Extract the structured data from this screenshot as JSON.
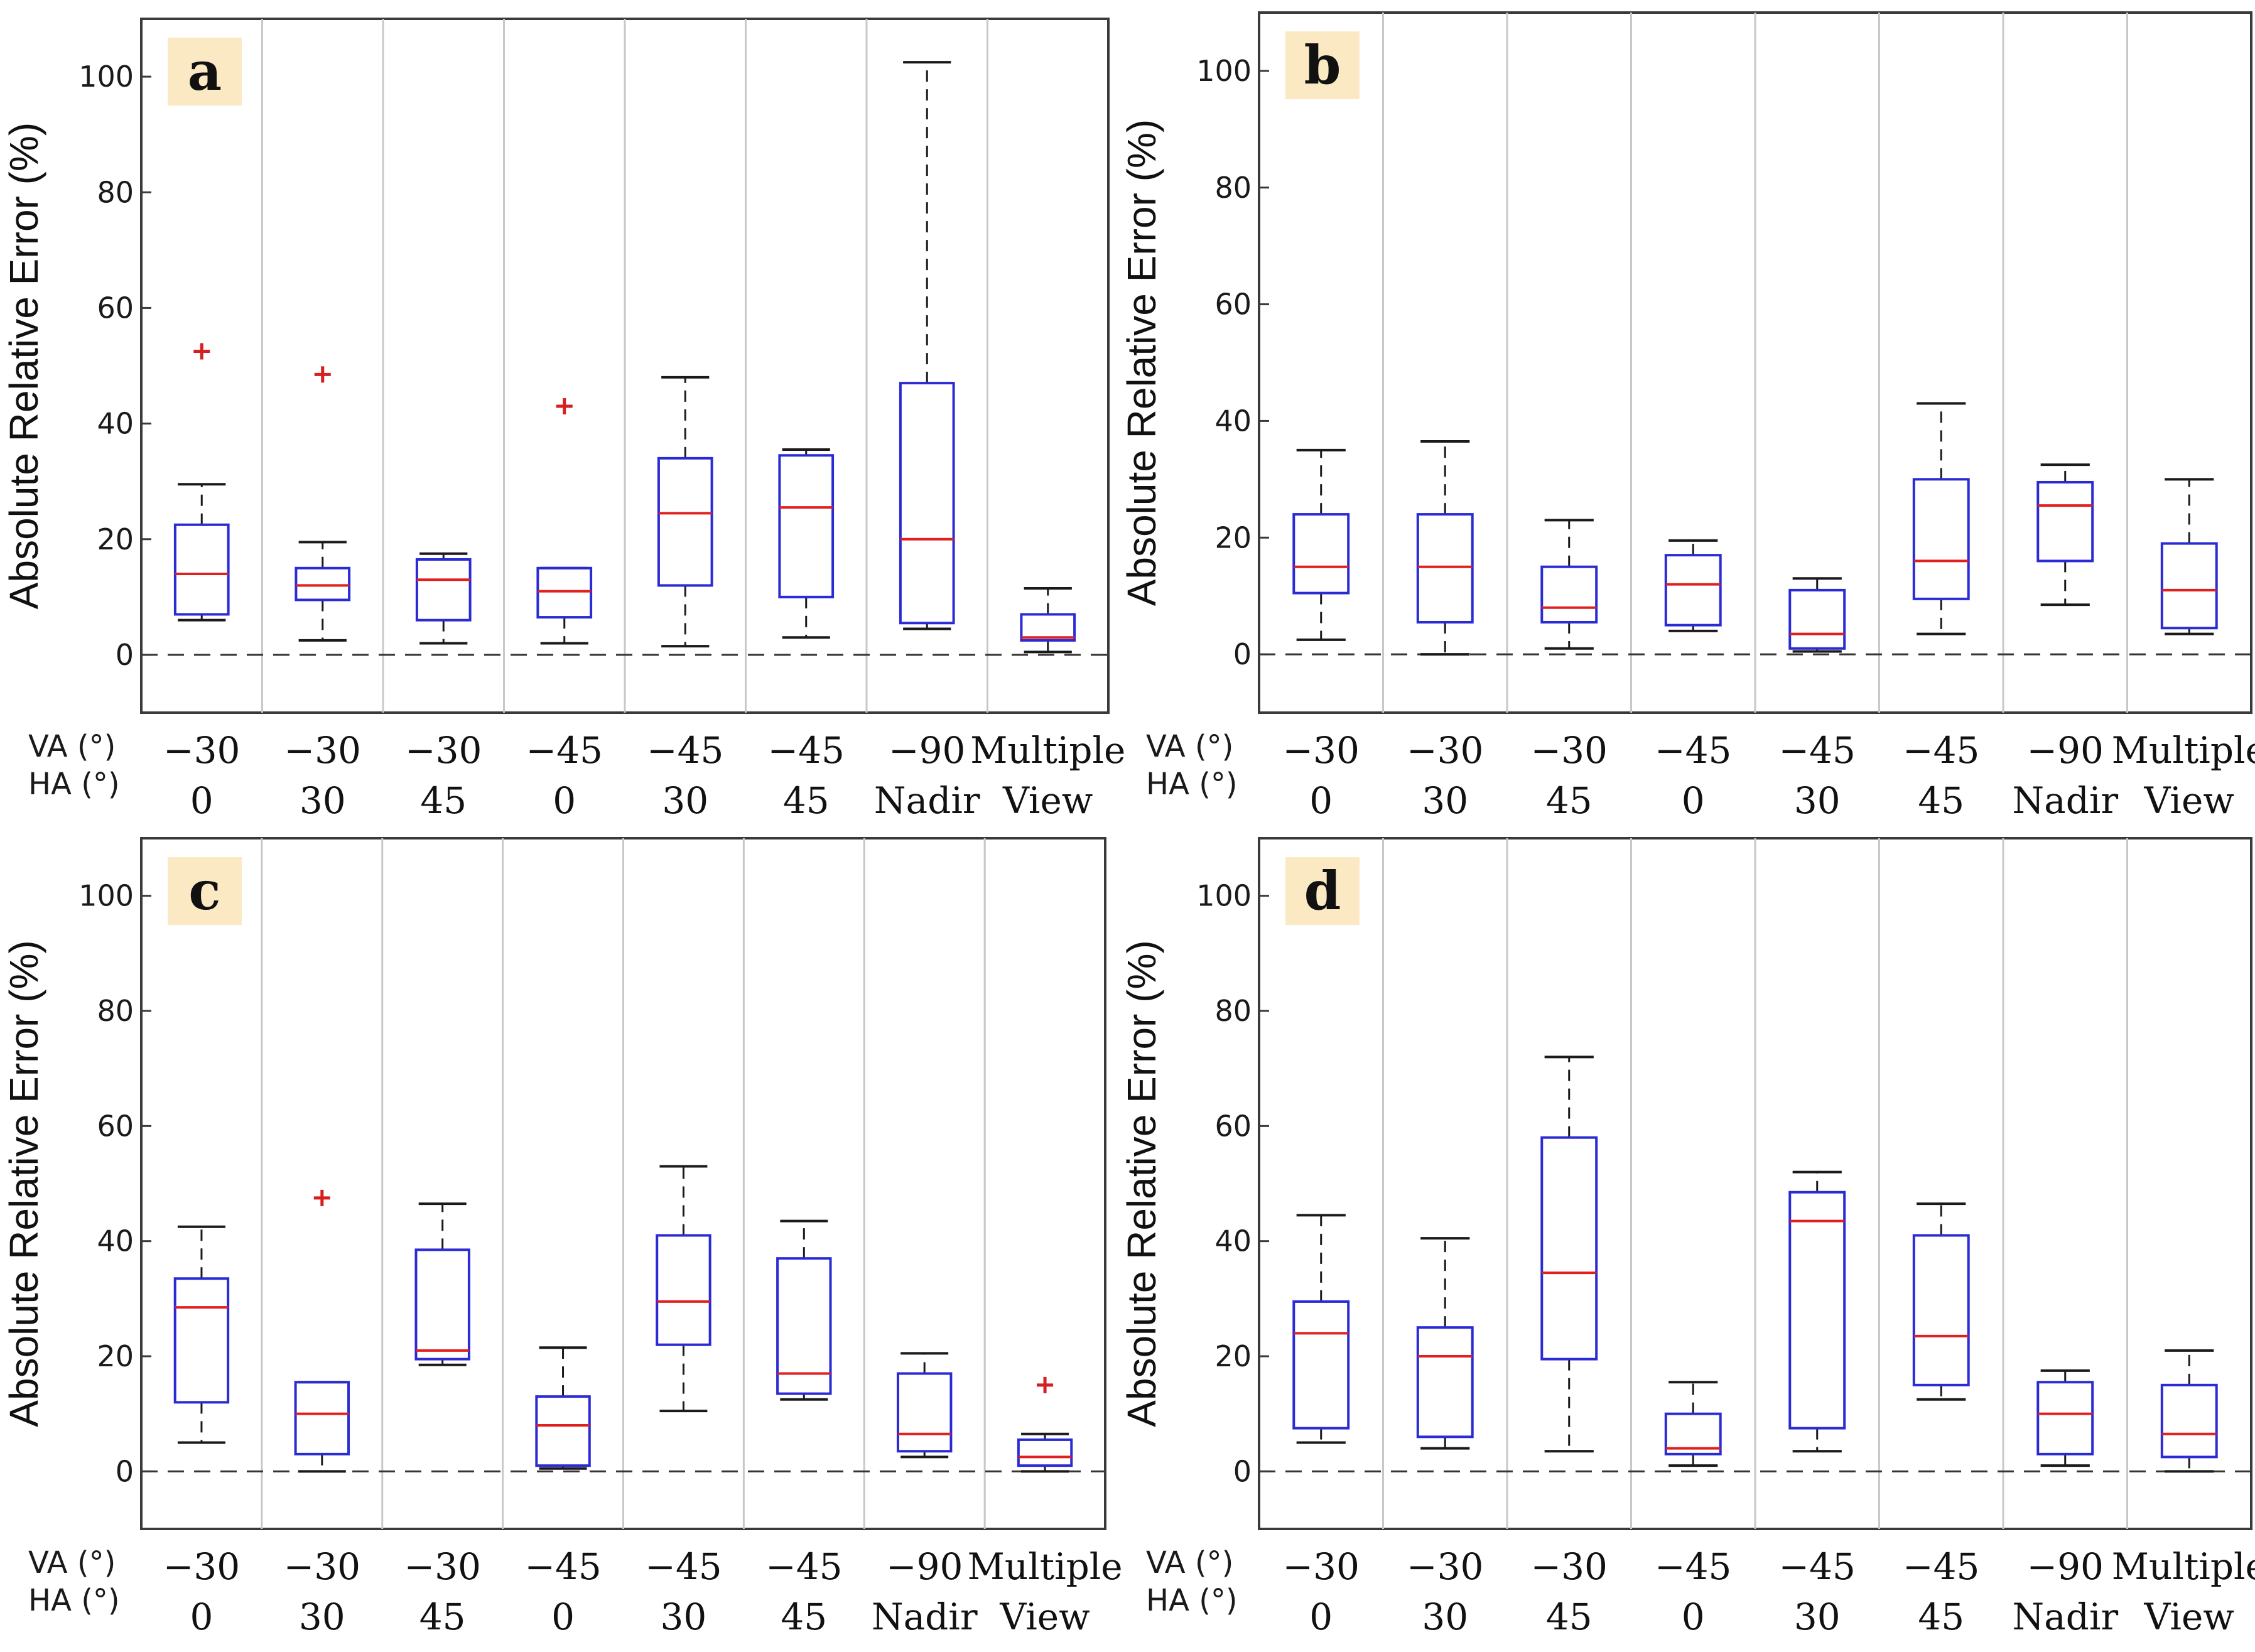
{
  "chart_data": [
    {
      "type": "box",
      "panel_label": "a",
      "title": "",
      "ylabel": "Absolute Relative Error (%)",
      "ylim": [
        -10,
        110
      ],
      "yticks": [
        "0",
        "20",
        "40",
        "60",
        "80",
        "100"
      ],
      "row_labels": [
        "VA (°)",
        "HA (°)"
      ],
      "categories": [
        {
          "va": "−30",
          "ha": "0"
        },
        {
          "va": "−30",
          "ha": "30"
        },
        {
          "va": "−30",
          "ha": "45"
        },
        {
          "va": "−45",
          "ha": "0"
        },
        {
          "va": "−45",
          "ha": "30"
        },
        {
          "va": "−45",
          "ha": "45"
        },
        {
          "va": "−90",
          "ha": "Nadir"
        },
        {
          "va": "Multiple",
          "ha": "View"
        }
      ],
      "boxes": [
        {
          "whisker_low": 6,
          "q1": 7,
          "median": 14,
          "q3": 22.5,
          "whisker_high": 29.5,
          "outliers": [
            52.5
          ]
        },
        {
          "whisker_low": 2.5,
          "q1": 9.5,
          "median": 12,
          "q3": 15,
          "whisker_high": 19.5,
          "outliers": [
            48.5
          ]
        },
        {
          "whisker_low": 2,
          "q1": 6,
          "median": 13,
          "q3": 16.5,
          "whisker_high": 17.5,
          "outliers": []
        },
        {
          "whisker_low": 2,
          "q1": 6.5,
          "median": 11,
          "q3": 15,
          "whisker_high": 15,
          "outliers": [
            43
          ]
        },
        {
          "whisker_low": 1.5,
          "q1": 12,
          "median": 24.5,
          "q3": 34,
          "whisker_high": 48,
          "outliers": []
        },
        {
          "whisker_low": 3,
          "q1": 10,
          "median": 25.5,
          "q3": 34.5,
          "whisker_high": 35.5,
          "outliers": []
        },
        {
          "whisker_low": 4.5,
          "q1": 5.5,
          "median": 20,
          "q3": 47,
          "whisker_high": 102.5,
          "outliers": []
        },
        {
          "whisker_low": 0.5,
          "q1": 2.5,
          "median": 3,
          "q3": 7,
          "whisker_high": 11.5,
          "outliers": []
        }
      ]
    },
    {
      "type": "box",
      "panel_label": "b",
      "title": "",
      "ylabel": "Absolute Relative Error (%)",
      "ylim": [
        -10,
        110
      ],
      "yticks": [
        "0",
        "20",
        "40",
        "60",
        "80",
        "100"
      ],
      "row_labels": [
        "VA (°)",
        "HA (°)"
      ],
      "categories": [
        {
          "va": "−30",
          "ha": "0"
        },
        {
          "va": "−30",
          "ha": "30"
        },
        {
          "va": "−30",
          "ha": "45"
        },
        {
          "va": "−45",
          "ha": "0"
        },
        {
          "va": "−45",
          "ha": "30"
        },
        {
          "va": "−45",
          "ha": "45"
        },
        {
          "va": "−90",
          "ha": "Nadir"
        },
        {
          "va": "Multiple",
          "ha": "View"
        }
      ],
      "boxes": [
        {
          "whisker_low": 2.5,
          "q1": 10.5,
          "median": 15,
          "q3": 24,
          "whisker_high": 35,
          "outliers": []
        },
        {
          "whisker_low": 0,
          "q1": 5.5,
          "median": 15,
          "q3": 24,
          "whisker_high": 36.5,
          "outliers": []
        },
        {
          "whisker_low": 1,
          "q1": 5.5,
          "median": 8,
          "q3": 15,
          "whisker_high": 23,
          "outliers": []
        },
        {
          "whisker_low": 4,
          "q1": 5,
          "median": 12,
          "q3": 17,
          "whisker_high": 19.5,
          "outliers": []
        },
        {
          "whisker_low": 0.5,
          "q1": 1,
          "median": 3.5,
          "q3": 11,
          "whisker_high": 13,
          "outliers": []
        },
        {
          "whisker_low": 3.5,
          "q1": 9.5,
          "median": 16,
          "q3": 30,
          "whisker_high": 43,
          "outliers": []
        },
        {
          "whisker_low": 8.5,
          "q1": 16,
          "median": 25.5,
          "q3": 29.5,
          "whisker_high": 32.5,
          "outliers": []
        },
        {
          "whisker_low": 3.5,
          "q1": 4.5,
          "median": 11,
          "q3": 19,
          "whisker_high": 30,
          "outliers": []
        }
      ]
    },
    {
      "type": "box",
      "panel_label": "c",
      "title": "",
      "ylabel": "Absolute Relative Error (%)",
      "ylim": [
        -10,
        110
      ],
      "yticks": [
        "0",
        "20",
        "40",
        "60",
        "80",
        "100"
      ],
      "row_labels": [
        "VA (°)",
        "HA (°)"
      ],
      "categories": [
        {
          "va": "−30",
          "ha": "0"
        },
        {
          "va": "−30",
          "ha": "30"
        },
        {
          "va": "−30",
          "ha": "45"
        },
        {
          "va": "−45",
          "ha": "0"
        },
        {
          "va": "−45",
          "ha": "30"
        },
        {
          "va": "−45",
          "ha": "45"
        },
        {
          "va": "−90",
          "ha": "Nadir"
        },
        {
          "va": "Multiple",
          "ha": "View"
        }
      ],
      "boxes": [
        {
          "whisker_low": 5,
          "q1": 12,
          "median": 28.5,
          "q3": 33.5,
          "whisker_high": 42.5,
          "outliers": []
        },
        {
          "whisker_low": 0,
          "q1": 3,
          "median": 10,
          "q3": 15.5,
          "whisker_high": 15.5,
          "outliers": [
            47.5
          ]
        },
        {
          "whisker_low": 18.5,
          "q1": 19.5,
          "median": 21,
          "q3": 38.5,
          "whisker_high": 46.5,
          "outliers": []
        },
        {
          "whisker_low": 0.5,
          "q1": 1,
          "median": 8,
          "q3": 13,
          "whisker_high": 21.5,
          "outliers": []
        },
        {
          "whisker_low": 10.5,
          "q1": 22,
          "median": 29.5,
          "q3": 41,
          "whisker_high": 53,
          "outliers": []
        },
        {
          "whisker_low": 12.5,
          "q1": 13.5,
          "median": 17,
          "q3": 37,
          "whisker_high": 43.5,
          "outliers": []
        },
        {
          "whisker_low": 2.5,
          "q1": 3.5,
          "median": 6.5,
          "q3": 17,
          "whisker_high": 20.5,
          "outliers": []
        },
        {
          "whisker_low": 0,
          "q1": 1,
          "median": 2.5,
          "q3": 5.5,
          "whisker_high": 6.5,
          "outliers": [
            15
          ]
        }
      ]
    },
    {
      "type": "box",
      "panel_label": "d",
      "title": "",
      "ylabel": "Absolute Relative Error (%)",
      "ylim": [
        -10,
        110
      ],
      "yticks": [
        "0",
        "20",
        "40",
        "60",
        "80",
        "100"
      ],
      "row_labels": [
        "VA (°)",
        "HA (°)"
      ],
      "categories": [
        {
          "va": "−30",
          "ha": "0"
        },
        {
          "va": "−30",
          "ha": "30"
        },
        {
          "va": "−30",
          "ha": "45"
        },
        {
          "va": "−45",
          "ha": "0"
        },
        {
          "va": "−45",
          "ha": "30"
        },
        {
          "va": "−45",
          "ha": "45"
        },
        {
          "va": "−90",
          "ha": "Nadir"
        },
        {
          "va": "Multiple",
          "ha": "View"
        }
      ],
      "boxes": [
        {
          "whisker_low": 5,
          "q1": 7.5,
          "median": 24,
          "q3": 29.5,
          "whisker_high": 44.5,
          "outliers": []
        },
        {
          "whisker_low": 4,
          "q1": 6,
          "median": 20,
          "q3": 25,
          "whisker_high": 40.5,
          "outliers": []
        },
        {
          "whisker_low": 3.5,
          "q1": 19.5,
          "median": 34.5,
          "q3": 58,
          "whisker_high": 72,
          "outliers": []
        },
        {
          "whisker_low": 1,
          "q1": 3,
          "median": 4,
          "q3": 10,
          "whisker_high": 15.5,
          "outliers": []
        },
        {
          "whisker_low": 3.5,
          "q1": 7.5,
          "median": 43.5,
          "q3": 48.5,
          "whisker_high": 52,
          "outliers": []
        },
        {
          "whisker_low": 12.5,
          "q1": 15,
          "median": 23.5,
          "q3": 41,
          "whisker_high": 46.5,
          "outliers": []
        },
        {
          "whisker_low": 1,
          "q1": 3,
          "median": 10,
          "q3": 15.5,
          "whisker_high": 17.5,
          "outliers": []
        },
        {
          "whisker_low": 0,
          "q1": 2.5,
          "median": 6.5,
          "q3": 15,
          "whisker_high": 21,
          "outliers": []
        }
      ]
    }
  ],
  "colors": {
    "box": "#2b2bd6",
    "median": "#e02020",
    "outlier": "#d61f1f",
    "whisker": "#1a1a1a",
    "separator": "#c8c8c8",
    "frame": "#3a3a3a",
    "label_bg": "#fbe9c3"
  }
}
